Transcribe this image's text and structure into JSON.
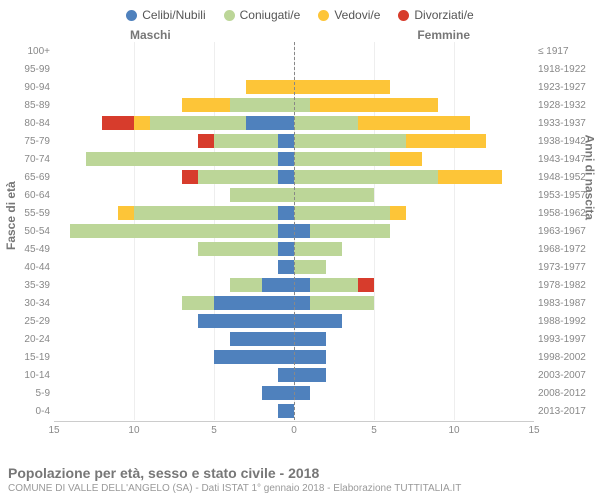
{
  "chart": {
    "type": "population-pyramid",
    "background_color": "#ffffff",
    "title": "Popolazione per età, sesso e stato civile - 2018",
    "subtitle": "COMUNE DI VALLE DELL'ANGELO (SA) - Dati ISTAT 1° gennaio 2018 - Elaborazione TUTTITALIA.IT",
    "y_title_left": "Fasce di età",
    "y_title_right": "Anni di nascita",
    "gender_left": "Maschi",
    "gender_right": "Femmine",
    "legend": [
      {
        "label": "Celibi/Nubili",
        "color": "#4f81bd"
      },
      {
        "label": "Coniugati/e",
        "color": "#bcd698"
      },
      {
        "label": "Vedovi/e",
        "color": "#fdc538"
      },
      {
        "label": "Divorziati/e",
        "color": "#d73c2c"
      }
    ],
    "axis": {
      "max": 15,
      "ticks": [
        15,
        10,
        5,
        0,
        5,
        10,
        15
      ],
      "label_fontsize": 10,
      "grid_color": "#eeeeee",
      "midline_color": "#888888"
    },
    "categories": [
      "celibi_nubili",
      "coniugati",
      "vedovi",
      "divorziati"
    ],
    "colors": {
      "celibi_nubili": "#4f81bd",
      "coniugati": "#bcd698",
      "vedovi": "#fdc538",
      "divorziati": "#d73c2c"
    },
    "rows": [
      {
        "age": "100+",
        "birth": "≤ 1917",
        "m": {
          "celibi_nubili": 0,
          "coniugati": 0,
          "vedovi": 0,
          "divorziati": 0
        },
        "f": {
          "celibi_nubili": 0,
          "coniugati": 0,
          "vedovi": 0,
          "divorziati": 0
        }
      },
      {
        "age": "95-99",
        "birth": "1918-1922",
        "m": {
          "celibi_nubili": 0,
          "coniugati": 0,
          "vedovi": 0,
          "divorziati": 0
        },
        "f": {
          "celibi_nubili": 0,
          "coniugati": 0,
          "vedovi": 0,
          "divorziati": 0
        }
      },
      {
        "age": "90-94",
        "birth": "1923-1927",
        "m": {
          "celibi_nubili": 0,
          "coniugati": 0,
          "vedovi": 3,
          "divorziati": 0
        },
        "f": {
          "celibi_nubili": 0,
          "coniugati": 0,
          "vedovi": 6,
          "divorziati": 0
        }
      },
      {
        "age": "85-89",
        "birth": "1928-1932",
        "m": {
          "celibi_nubili": 0,
          "coniugati": 4,
          "vedovi": 3,
          "divorziati": 0
        },
        "f": {
          "celibi_nubili": 0,
          "coniugati": 1,
          "vedovi": 8,
          "divorziati": 0
        }
      },
      {
        "age": "80-84",
        "birth": "1933-1937",
        "m": {
          "celibi_nubili": 3,
          "coniugati": 6,
          "vedovi": 1,
          "divorziati": 2
        },
        "f": {
          "celibi_nubili": 0,
          "coniugati": 4,
          "vedovi": 7,
          "divorziati": 0
        }
      },
      {
        "age": "75-79",
        "birth": "1938-1942",
        "m": {
          "celibi_nubili": 1,
          "coniugati": 4,
          "vedovi": 0,
          "divorziati": 1
        },
        "f": {
          "celibi_nubili": 0,
          "coniugati": 7,
          "vedovi": 5,
          "divorziati": 0
        }
      },
      {
        "age": "70-74",
        "birth": "1943-1947",
        "m": {
          "celibi_nubili": 1,
          "coniugati": 12,
          "vedovi": 0,
          "divorziati": 0
        },
        "f": {
          "celibi_nubili": 0,
          "coniugati": 6,
          "vedovi": 2,
          "divorziati": 0
        }
      },
      {
        "age": "65-69",
        "birth": "1948-1952",
        "m": {
          "celibi_nubili": 1,
          "coniugati": 5,
          "vedovi": 0,
          "divorziati": 1
        },
        "f": {
          "celibi_nubili": 0,
          "coniugati": 9,
          "vedovi": 4,
          "divorziati": 0
        }
      },
      {
        "age": "60-64",
        "birth": "1953-1957",
        "m": {
          "celibi_nubili": 0,
          "coniugati": 4,
          "vedovi": 0,
          "divorziati": 0
        },
        "f": {
          "celibi_nubili": 0,
          "coniugati": 5,
          "vedovi": 0,
          "divorziati": 0
        }
      },
      {
        "age": "55-59",
        "birth": "1958-1962",
        "m": {
          "celibi_nubili": 1,
          "coniugati": 9,
          "vedovi": 1,
          "divorziati": 0
        },
        "f": {
          "celibi_nubili": 0,
          "coniugati": 6,
          "vedovi": 1,
          "divorziati": 0
        }
      },
      {
        "age": "50-54",
        "birth": "1963-1967",
        "m": {
          "celibi_nubili": 1,
          "coniugati": 13,
          "vedovi": 0,
          "divorziati": 0
        },
        "f": {
          "celibi_nubili": 1,
          "coniugati": 5,
          "vedovi": 0,
          "divorziati": 0
        }
      },
      {
        "age": "45-49",
        "birth": "1968-1972",
        "m": {
          "celibi_nubili": 1,
          "coniugati": 5,
          "vedovi": 0,
          "divorziati": 0
        },
        "f": {
          "celibi_nubili": 0,
          "coniugati": 3,
          "vedovi": 0,
          "divorziati": 0
        }
      },
      {
        "age": "40-44",
        "birth": "1973-1977",
        "m": {
          "celibi_nubili": 1,
          "coniugati": 0,
          "vedovi": 0,
          "divorziati": 0
        },
        "f": {
          "celibi_nubili": 0,
          "coniugati": 2,
          "vedovi": 0,
          "divorziati": 0
        }
      },
      {
        "age": "35-39",
        "birth": "1978-1982",
        "m": {
          "celibi_nubili": 2,
          "coniugati": 2,
          "vedovi": 0,
          "divorziati": 0
        },
        "f": {
          "celibi_nubili": 1,
          "coniugati": 3,
          "vedovi": 0,
          "divorziati": 1
        }
      },
      {
        "age": "30-34",
        "birth": "1983-1987",
        "m": {
          "celibi_nubili": 5,
          "coniugati": 2,
          "vedovi": 0,
          "divorziati": 0
        },
        "f": {
          "celibi_nubili": 1,
          "coniugati": 4,
          "vedovi": 0,
          "divorziati": 0
        }
      },
      {
        "age": "25-29",
        "birth": "1988-1992",
        "m": {
          "celibi_nubili": 6,
          "coniugati": 0,
          "vedovi": 0,
          "divorziati": 0
        },
        "f": {
          "celibi_nubili": 3,
          "coniugati": 0,
          "vedovi": 0,
          "divorziati": 0
        }
      },
      {
        "age": "20-24",
        "birth": "1993-1997",
        "m": {
          "celibi_nubili": 4,
          "coniugati": 0,
          "vedovi": 0,
          "divorziati": 0
        },
        "f": {
          "celibi_nubili": 2,
          "coniugati": 0,
          "vedovi": 0,
          "divorziati": 0
        }
      },
      {
        "age": "15-19",
        "birth": "1998-2002",
        "m": {
          "celibi_nubili": 5,
          "coniugati": 0,
          "vedovi": 0,
          "divorziati": 0
        },
        "f": {
          "celibi_nubili": 2,
          "coniugati": 0,
          "vedovi": 0,
          "divorziati": 0
        }
      },
      {
        "age": "10-14",
        "birth": "2003-2007",
        "m": {
          "celibi_nubili": 1,
          "coniugati": 0,
          "vedovi": 0,
          "divorziati": 0
        },
        "f": {
          "celibi_nubili": 2,
          "coniugati": 0,
          "vedovi": 0,
          "divorziati": 0
        }
      },
      {
        "age": "5-9",
        "birth": "2008-2012",
        "m": {
          "celibi_nubili": 2,
          "coniugati": 0,
          "vedovi": 0,
          "divorziati": 0
        },
        "f": {
          "celibi_nubili": 1,
          "coniugati": 0,
          "vedovi": 0,
          "divorziati": 0
        }
      },
      {
        "age": "0-4",
        "birth": "2013-2017",
        "m": {
          "celibi_nubili": 1,
          "coniugati": 0,
          "vedovi": 0,
          "divorziati": 0
        },
        "f": {
          "celibi_nubili": 0,
          "coniugati": 0,
          "vedovi": 0,
          "divorziati": 0
        }
      }
    ]
  }
}
